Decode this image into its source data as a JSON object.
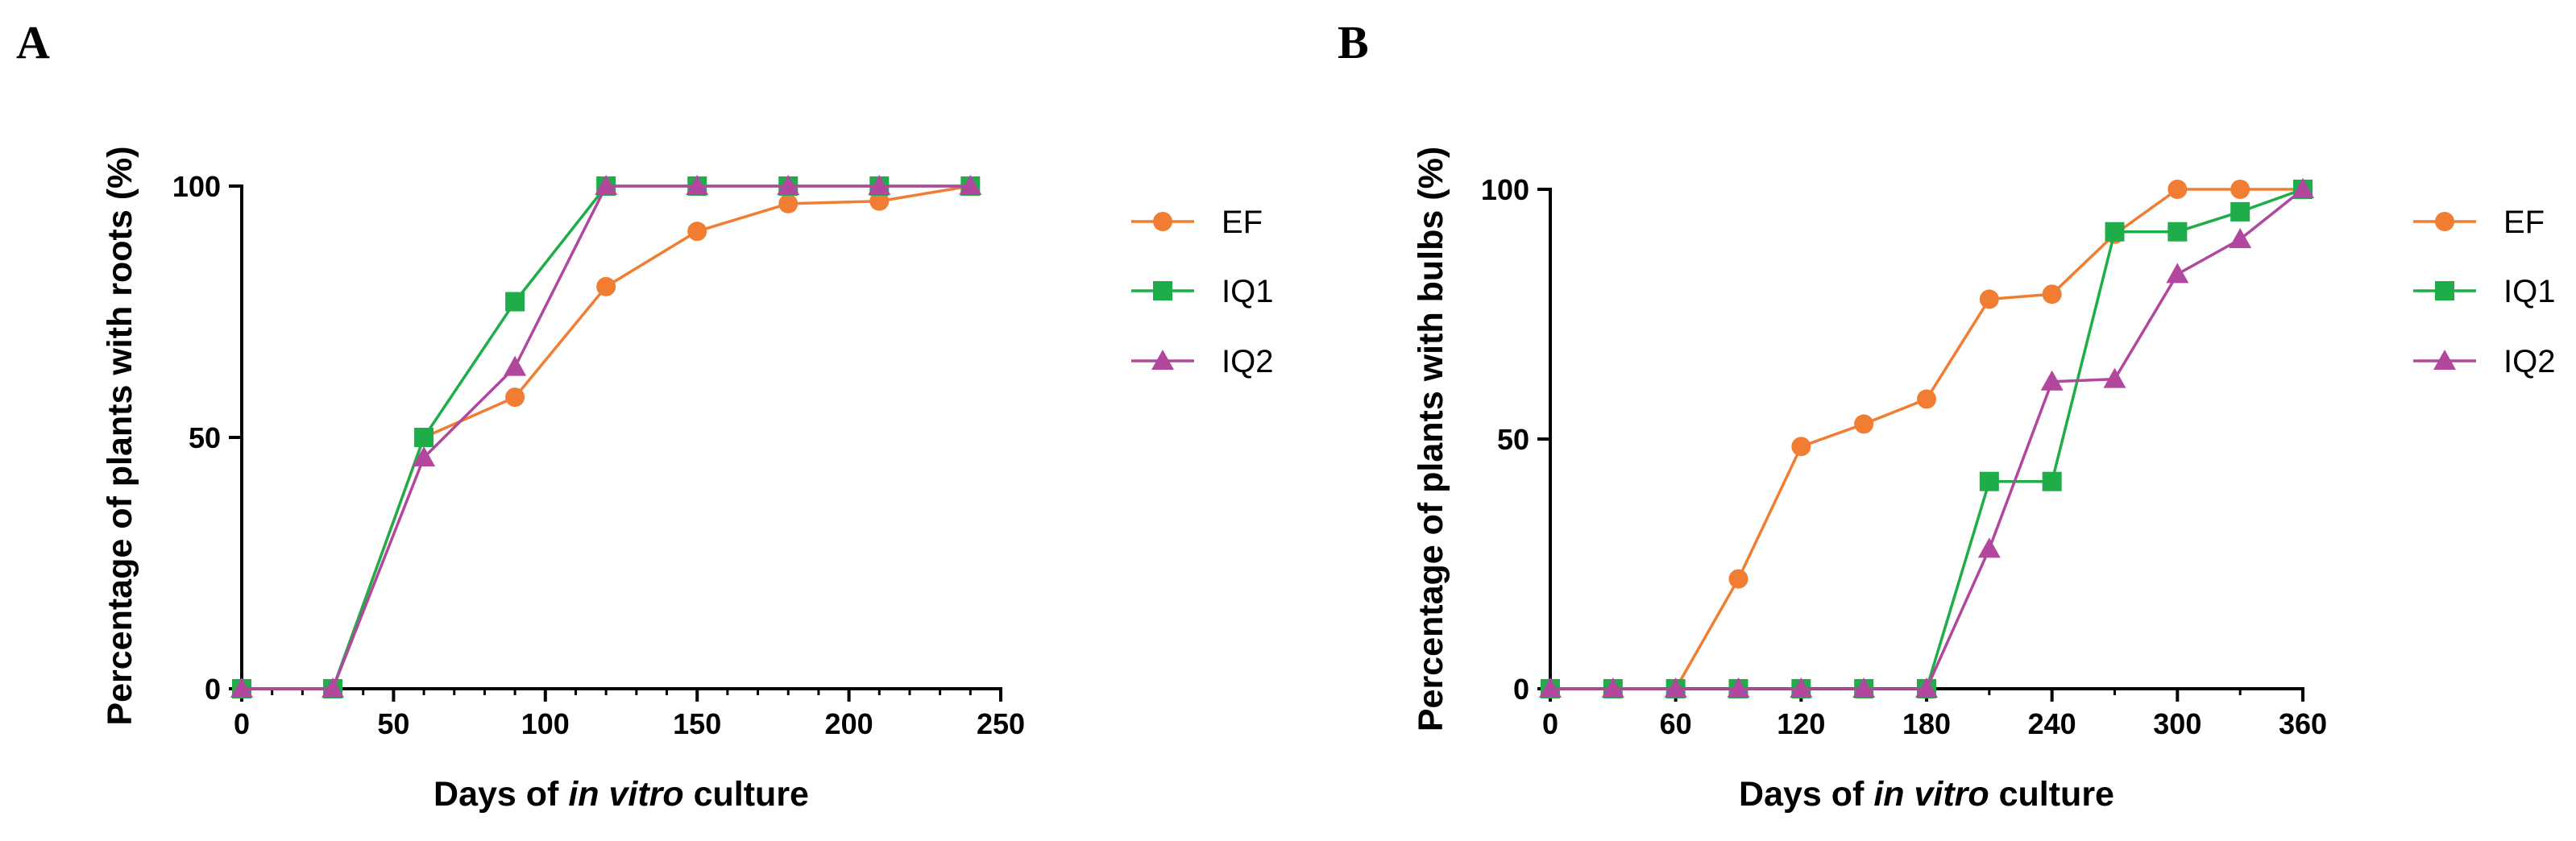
{
  "chart_data": [
    {
      "type": "line",
      "panel_label": "A",
      "xlabel_parts": [
        "Days of ",
        "in vitro",
        " culture"
      ],
      "ylabel": "Percentage of plants with roots (%)",
      "xlim": [
        0,
        250
      ],
      "ylim": [
        0,
        100
      ],
      "x_ticks": [
        0,
        50,
        100,
        150,
        200,
        250
      ],
      "y_ticks": [
        0,
        50,
        100
      ],
      "x_minor_step": 10,
      "grid": false,
      "legend_position": "right",
      "series": [
        {
          "name": "EF",
          "color": "#f07d32",
          "marker": "circle",
          "x": [
            0,
            30,
            60,
            90,
            120,
            150,
            180,
            210,
            240
          ],
          "y": [
            0,
            0,
            50,
            58,
            80,
            91,
            96.5,
            97,
            100
          ]
        },
        {
          "name": "IQ1",
          "color": "#1fad4a",
          "marker": "square",
          "x": [
            0,
            30,
            60,
            90,
            120,
            150,
            180,
            210,
            240
          ],
          "y": [
            0,
            0,
            50,
            77,
            100,
            100,
            100,
            100,
            100
          ]
        },
        {
          "name": "IQ2",
          "color": "#b2479e",
          "marker": "triangle",
          "x": [
            0,
            30,
            60,
            90,
            120,
            150,
            180,
            210,
            240
          ],
          "y": [
            0,
            0,
            46,
            64,
            100,
            100,
            100,
            100,
            100
          ]
        }
      ]
    },
    {
      "type": "line",
      "panel_label": "B",
      "xlabel_parts": [
        "Days of ",
        "in vitro",
        " culture"
      ],
      "ylabel": "Percentage of plants with bulbs (%)",
      "xlim": [
        0,
        360
      ],
      "ylim": [
        0,
        100
      ],
      "x_ticks": [
        0,
        60,
        120,
        180,
        240,
        300,
        360
      ],
      "y_ticks": [
        0,
        50,
        100
      ],
      "x_minor_step": 30,
      "grid": false,
      "legend_position": "right",
      "series": [
        {
          "name": "EF",
          "color": "#f07d32",
          "marker": "circle",
          "x": [
            0,
            30,
            60,
            90,
            120,
            150,
            180,
            210,
            240,
            270,
            300,
            330,
            360
          ],
          "y": [
            0,
            0,
            0,
            22,
            48.5,
            53,
            58,
            78,
            79,
            91,
            100,
            100,
            100
          ]
        },
        {
          "name": "IQ1",
          "color": "#1fad4a",
          "marker": "square",
          "x": [
            0,
            30,
            60,
            90,
            120,
            150,
            180,
            210,
            240,
            270,
            300,
            330,
            360
          ],
          "y": [
            0,
            0,
            0,
            0,
            0,
            0,
            0,
            41.5,
            41.5,
            91.5,
            91.5,
            95.5,
            100
          ]
        },
        {
          "name": "IQ2",
          "color": "#b2479e",
          "marker": "triangle",
          "x": [
            0,
            30,
            60,
            90,
            120,
            150,
            180,
            210,
            240,
            270,
            300,
            330,
            360
          ],
          "y": [
            0,
            0,
            0,
            0,
            0,
            0,
            0,
            28,
            61.5,
            62,
            83,
            90,
            100
          ]
        }
      ]
    }
  ]
}
